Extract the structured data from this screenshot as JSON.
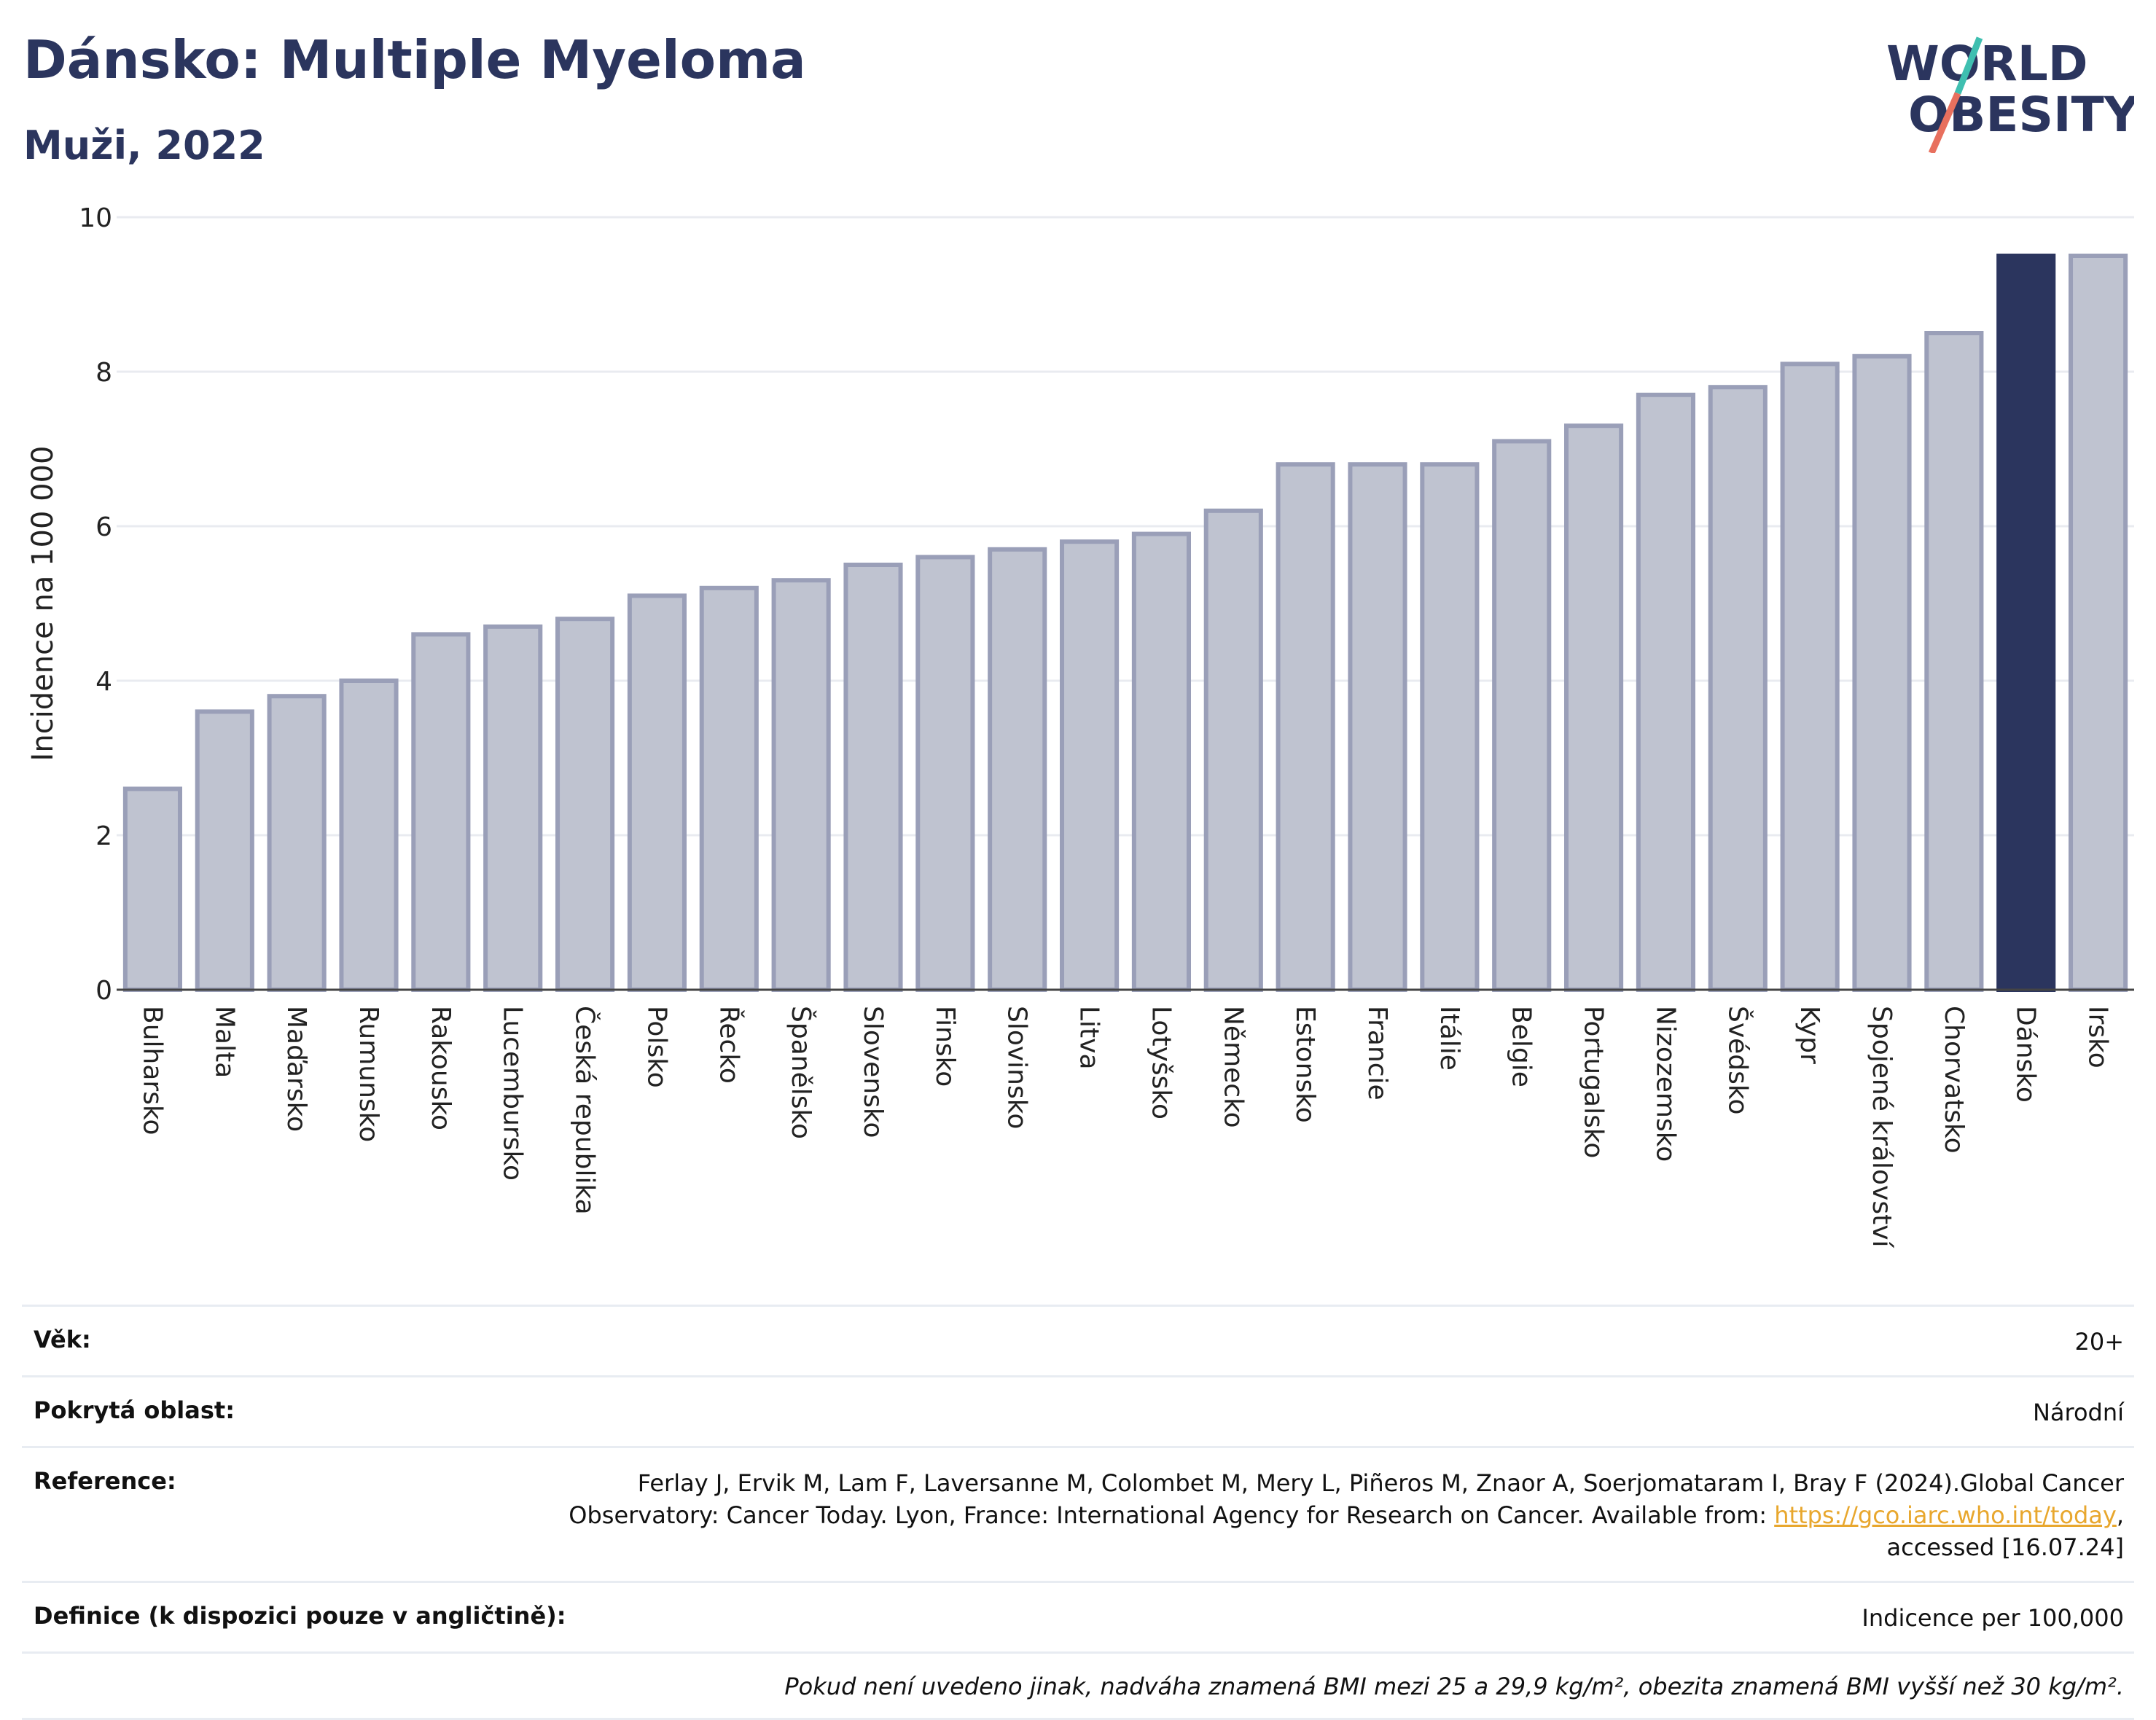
{
  "header": {
    "title": "Dánsko: Multiple Myeloma",
    "subtitle": "Muži, 2022"
  },
  "logo": {
    "line1": "WORLD",
    "line2": "OBESITY"
  },
  "colors": {
    "highlight": "#2b355e",
    "bar": "#bfc3d0",
    "bar_border": "#9a9fb8",
    "title": "#2b355e"
  },
  "chart_data": {
    "type": "bar",
    "ylabel": "Incidence na 100 000",
    "ylim": [
      0,
      10
    ],
    "yticks": [
      0,
      2,
      4,
      6,
      8,
      10
    ],
    "grid": true,
    "highlight": "Dánsko",
    "categories": [
      "Bulharsko",
      "Malta",
      "Maďarsko",
      "Rumunsko",
      "Rakousko",
      "Lucembursko",
      "Česká republika",
      "Polsko",
      "Řecko",
      "Španělsko",
      "Slovensko",
      "Finsko",
      "Slovinsko",
      "Litva",
      "Lotyšsko",
      "Německo",
      "Estonsko",
      "Francie",
      "Itálie",
      "Belgie",
      "Portugalsko",
      "Nizozemsko",
      "Švédsko",
      "Kypr",
      "Spojené království",
      "Chorvatsko",
      "Dánsko",
      "Irsko"
    ],
    "values": [
      2.6,
      3.6,
      3.8,
      4.0,
      4.6,
      4.7,
      4.8,
      5.1,
      5.2,
      5.3,
      5.5,
      5.6,
      5.7,
      5.8,
      5.9,
      6.2,
      6.8,
      6.8,
      6.8,
      7.1,
      7.3,
      7.7,
      7.8,
      8.1,
      8.2,
      8.5,
      9.5,
      9.5
    ]
  },
  "meta": {
    "age_label": "Věk:",
    "age_value": "20+",
    "area_label": "Pokrytá oblast:",
    "area_value": "Národní",
    "reference_label": "Reference:",
    "reference_text_1": "Ferlay J, Ervik M, Lam F, Laversanne M, Colombet M, Mery L, Piñeros M, Znaor A, Soerjomataram I, Bray F (2024).Global Cancer",
    "reference_text_2": "Observatory: Cancer Today. Lyon, France: International Agency for Research on Cancer. Available from:",
    "reference_link": "https://gco.iarc.who.int/today",
    "reference_text_3": "accessed [16.07.24]",
    "definition_label": "Definice (k dispozici pouze v angličtině):",
    "definition_value": "Indicence per 100,000",
    "note": "Pokud není uvedeno jinak, nadváha znamená BMI mezi 25 a 29,9 kg/m², obezita znamená BMI vyšší než 30 kg/m²."
  }
}
